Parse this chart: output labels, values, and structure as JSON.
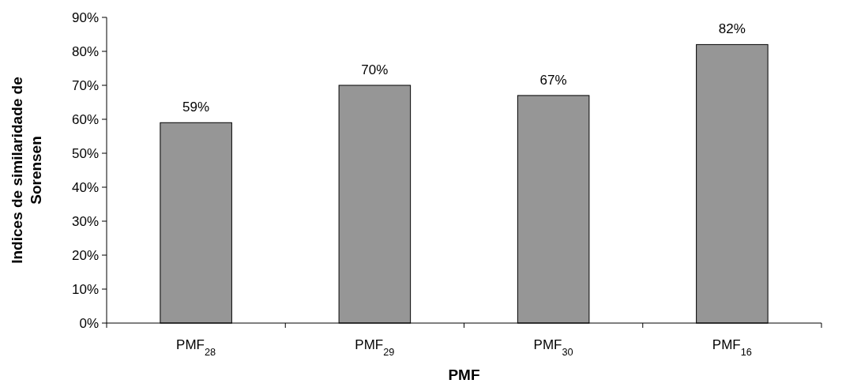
{
  "chart_data": {
    "type": "bar",
    "xlabel": "PMF",
    "ylabel": "Indices de similaridade de Sorensen",
    "categories": [
      "PMF$_{28}$",
      "PMF$_{29}$",
      "PMF$_{30}$",
      "PMF$_{16}$"
    ],
    "values": [
      59,
      70,
      67,
      82
    ],
    "value_labels": [
      "59%",
      "70%",
      "67%",
      "82%"
    ],
    "color": "#969696",
    "ylim": [
      0,
      90
    ],
    "yticks": [
      {
        "value": 0,
        "label": "0%"
      },
      {
        "value": 10,
        "label": "10%"
      },
      {
        "value": 20,
        "label": "20%"
      },
      {
        "value": 30,
        "label": "30%"
      },
      {
        "value": 40,
        "label": "40%"
      },
      {
        "value": 50,
        "label": "50%"
      },
      {
        "value": 60,
        "label": "60%"
      },
      {
        "value": 70,
        "label": "70%"
      },
      {
        "value": 80,
        "label": "80%"
      },
      {
        "value": 90,
        "label": "90%"
      }
    ],
    "grid": false
  }
}
